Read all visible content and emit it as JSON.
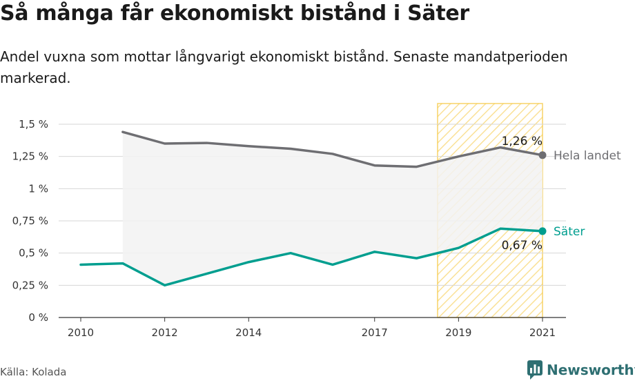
{
  "title": "Så många får ekonomiskt bistånd i Säter",
  "subtitle": "Andel vuxna som mottar långvarigt ekonomiskt bistånd. Senaste mandatperioden markerad.",
  "source": "Källa: Kolada",
  "brand": {
    "name": "Newsworthy",
    "icon": "newsworthy-logo-icon",
    "color": "#2e6f72"
  },
  "chart_data": {
    "type": "line",
    "xlim": [
      2010,
      2021
    ],
    "ylim": [
      0,
      1.5
    ],
    "x_ticks": [
      2010,
      2012,
      2014,
      2017,
      2019,
      2021
    ],
    "y_ticks": [
      {
        "value": 0,
        "label": "0 %"
      },
      {
        "value": 0.25,
        "label": "0,25 %"
      },
      {
        "value": 0.5,
        "label": "0,5 %"
      },
      {
        "value": 0.75,
        "label": "0,75 %"
      },
      {
        "value": 1,
        "label": "1 %"
      },
      {
        "value": 1.25,
        "label": "1,25 %"
      },
      {
        "value": 1.5,
        "label": "1,5 %"
      }
    ],
    "grid": true,
    "highlight_period": {
      "from": 2018.5,
      "to": 2021,
      "color": "#f5c842"
    },
    "series": [
      {
        "name": "Hela landet",
        "color": "#6e6e72",
        "end_label": "1,26 %",
        "points": [
          [
            2011,
            1.44
          ],
          [
            2012,
            1.35
          ],
          [
            2013,
            1.355
          ],
          [
            2014,
            1.33
          ],
          [
            2015,
            1.31
          ],
          [
            2016,
            1.27
          ],
          [
            2017,
            1.18
          ],
          [
            2018,
            1.17
          ],
          [
            2019,
            1.25
          ],
          [
            2020,
            1.32
          ],
          [
            2021,
            1.26
          ]
        ]
      },
      {
        "name": "Säter",
        "color": "#009e8f",
        "end_label": "0,67 %",
        "points": [
          [
            2010,
            0.41
          ],
          [
            2011,
            0.42
          ],
          [
            2012,
            0.25
          ],
          [
            2013,
            0.34
          ],
          [
            2014,
            0.43
          ],
          [
            2015,
            0.5
          ],
          [
            2016,
            0.41
          ],
          [
            2017,
            0.51
          ],
          [
            2018,
            0.46
          ],
          [
            2019,
            0.54
          ],
          [
            2020,
            0.69
          ],
          [
            2021,
            0.67
          ]
        ]
      }
    ]
  }
}
